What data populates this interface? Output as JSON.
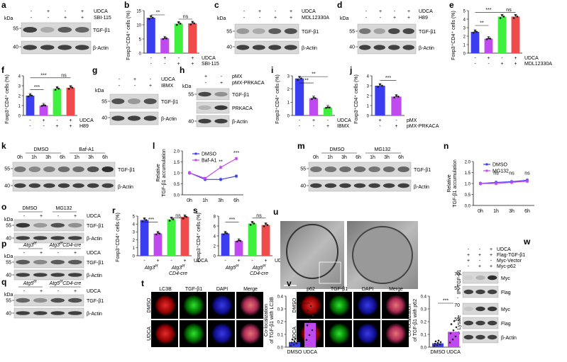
{
  "figure": {
    "panel_letters": [
      "a",
      "b",
      "c",
      "d",
      "e",
      "f",
      "g",
      "h",
      "i",
      "j",
      "k",
      "l",
      "m",
      "n",
      "o",
      "p",
      "q",
      "r",
      "s",
      "t",
      "u",
      "v",
      "w"
    ],
    "common": {
      "kda": "kDa",
      "tgf": "TGF-β1",
      "actin": "β-Actin",
      "udca": "UDCA",
      "foxp3_axis": "Foxp3⁺CD4⁺ cells (%)",
      "minus": "-",
      "plus": "+",
      "ns": "ns",
      "dmso": "DMSO",
      "dapi": "DAPI",
      "merge": "Merge"
    },
    "a": {
      "treat2": "SBI-115",
      "mw": [
        "55",
        "40"
      ]
    },
    "b": {
      "treat2": "SBI-115",
      "yticks": [
        "0",
        "5",
        "10",
        "15"
      ],
      "sig1": "**"
    },
    "c": {
      "treat2": "MDL12330A",
      "mw": [
        "55",
        "40"
      ]
    },
    "d": {
      "treat2": "H89",
      "mw": [
        "55",
        "40"
      ]
    },
    "e": {
      "treat2": "MDL12330A",
      "yticks": [
        "0",
        "1",
        "2",
        "3",
        "4",
        "5"
      ],
      "sig1": "***",
      "sig2": "**"
    },
    "f": {
      "treat2": "H89",
      "yticks": [
        "0",
        "1",
        "2",
        "3",
        "4"
      ],
      "sig1": "***",
      "sig2": "***"
    },
    "g": {
      "treat2": "IBMX",
      "mw": [
        "55",
        "40"
      ]
    },
    "h": {
      "row1": "pMX",
      "row2": "pMX-PRKACA",
      "prkaca": "PRKACA",
      "mw": [
        "55",
        "40"
      ]
    },
    "i": {
      "treat2": "IBMX",
      "yticks": [
        "0",
        "1",
        "2",
        "3"
      ],
      "sig1": "**",
      "sig2": "**"
    },
    "j": {
      "row1": "pMX",
      "row2": "pMX-PRKACA",
      "yticks": [
        "0",
        "1",
        "2",
        "3",
        "4"
      ],
      "sig1": "***"
    },
    "k": {
      "group2": "Baf-A1",
      "times": [
        "0h",
        "1h",
        "3h",
        "6h",
        "1h",
        "3h",
        "6h"
      ],
      "mw": [
        "55",
        "40"
      ]
    },
    "l": {
      "ylabel_line1": "Relative",
      "ylabel_line2": "TGF-β1 accumulation",
      "yticks": [
        "0.0",
        "0.5",
        "1.0",
        "1.5",
        "2.0"
      ],
      "sig_a": "**",
      "sig_b": "***",
      "legend": [
        "DMSO",
        "Baf-A1"
      ]
    },
    "m": {
      "group2": "MG132",
      "times": [
        "0h",
        "1h",
        "3h",
        "6h",
        "1h",
        "3h",
        "6h"
      ],
      "mw": [
        "55",
        "40"
      ]
    },
    "n": {
      "ylabel_line1": "Relative",
      "ylabel_line2": "TGF-β1 accumulation",
      "yticks": [
        "0.0",
        "0.5",
        "1.0",
        "1.5",
        "2.0"
      ],
      "legend": [
        "DMSO",
        "MG132"
      ]
    },
    "o": {
      "group2": "MG132",
      "mw": [
        "55",
        "40"
      ]
    },
    "p": {
      "g1": "Atg3",
      "g1sup": "f/f",
      "g2": "Atg3",
      "g2sup": "f/f",
      "g2suf": "CD4-cre",
      "mw": [
        "55",
        "40"
      ]
    },
    "q": {
      "g1": "Atg5",
      "g1sup": "f/f",
      "g2": "Atg5",
      "g2sup": "f/f",
      "g2suf": "CD4-cre",
      "mw": [
        "55",
        "40"
      ]
    },
    "r": {
      "yticks": [
        "0",
        "1",
        "2",
        "3",
        "4",
        "5"
      ],
      "sig1": "***",
      "g1": "Atg3",
      "g1sup": "f/f",
      "g2": "Atg3",
      "g2sup": "f/f",
      "g2suf": "CD4-cre"
    },
    "s": {
      "yticks": [
        "0",
        "2",
        "4",
        "6",
        "8"
      ],
      "sig1": "***",
      "g1": "Atg5",
      "g1sup": "f/f",
      "g2": "Atg5",
      "g2sup": "f/f",
      "g2suf": "CD4-cre"
    },
    "t": {
      "channels": [
        "LC3B",
        "TGF-β1",
        "DAPI",
        "Merge"
      ],
      "ylabel_line1": "Co-localization",
      "ylabel_line2": "of TGF-β1 with LC3B",
      "yticks": [
        "0.0",
        "0.1",
        "0.2",
        "0.3",
        "0.4"
      ],
      "sig": "***"
    },
    "v": {
      "channels": [
        "p62",
        "TGF-β1",
        "DAPI",
        "Merge"
      ],
      "ylabel_line1": "Co-localization",
      "ylabel_line2": "of TGF-β1 with p62",
      "yticks": [
        "0.0",
        "0.1",
        "0.2",
        "0.3",
        "0.4"
      ],
      "sig": "***"
    },
    "w": {
      "rows": [
        "UDCA",
        "Flag-TGF-β1",
        "Myc-Vector",
        "Myc-p62"
      ],
      "ip": "IP: TGF-β1",
      "lysate": "Lysate",
      "bands": [
        "Myc",
        "Flag",
        "Myc",
        "Flag",
        "β-Actin"
      ],
      "mw": [
        "70",
        "55",
        "70",
        "55",
        "40"
      ]
    }
  },
  "colors": {
    "blue": "#3a3df0",
    "purple": "#c04af0",
    "green": "#3ff03f",
    "red": "#f04a4a"
  },
  "chart_data": [
    {
      "type": "bar",
      "panel": "b",
      "categories": [
        "- / -",
        "UDCA",
        "SBI-115",
        "UDCA + SBI-115"
      ],
      "values": [
        12.5,
        5.2,
        10.4,
        10.5
      ],
      "ylim": [
        0,
        15
      ],
      "ylabel": "Foxp3⁺CD4⁺ cells (%)"
    },
    {
      "type": "bar",
      "panel": "e",
      "categories": [
        "- / -",
        "UDCA",
        "MDL12330A",
        "UDCA + MDL12330A"
      ],
      "values": [
        2.5,
        1.7,
        4.3,
        4.3
      ],
      "ylim": [
        0,
        5
      ],
      "ylabel": "Foxp3⁺CD4⁺ cells (%)"
    },
    {
      "type": "bar",
      "panel": "f",
      "categories": [
        "- / -",
        "UDCA",
        "H89",
        "UDCA + H89"
      ],
      "values": [
        2.0,
        1.0,
        2.7,
        2.8
      ],
      "ylim": [
        0,
        4
      ],
      "ylabel": "Foxp3⁺CD4⁺ cells (%)"
    },
    {
      "type": "bar",
      "panel": "i",
      "categories": [
        "- / -",
        "UDCA",
        "IBMX"
      ],
      "values": [
        2.8,
        1.3,
        0.6
      ],
      "ylim": [
        0,
        3
      ],
      "ylabel": "Foxp3⁺CD4⁺ cells (%)"
    },
    {
      "type": "bar",
      "panel": "j",
      "categories": [
        "pMX",
        "pMX-PRKACA"
      ],
      "values": [
        3.0,
        1.9
      ],
      "ylim": [
        0,
        4
      ],
      "ylabel": "Foxp3⁺CD4⁺ cells (%)"
    },
    {
      "type": "line",
      "panel": "l",
      "x": [
        "0h",
        "1h",
        "3h",
        "6h"
      ],
      "series": [
        {
          "name": "DMSO",
          "values": [
            1.0,
            0.7,
            0.7,
            0.85
          ]
        },
        {
          "name": "Baf-A1",
          "values": [
            1.0,
            0.75,
            1.25,
            1.65
          ]
        }
      ],
      "ylim": [
        0,
        2
      ]
    },
    {
      "type": "line",
      "panel": "n",
      "x": [
        "0h",
        "1h",
        "3h",
        "6h"
      ],
      "series": [
        {
          "name": "DMSO",
          "values": [
            1.0,
            1.05,
            1.08,
            1.15
          ]
        },
        {
          "name": "MG132",
          "values": [
            1.0,
            1.0,
            1.05,
            1.1
          ]
        }
      ],
      "ylim": [
        0,
        2
      ]
    },
    {
      "type": "bar",
      "panel": "r",
      "categories": [
        "Atg3 f/f -",
        "Atg3 f/f +",
        "Atg3 f/f CD4-cre -",
        "Atg3 f/f CD4-cre +"
      ],
      "values": [
        4.5,
        2.8,
        4.6,
        4.9
      ],
      "ylim": [
        0,
        5
      ],
      "ylabel": "Foxp3⁺CD4⁺ cells (%)"
    },
    {
      "type": "bar",
      "panel": "s",
      "categories": [
        "Atg5 f/f -",
        "Atg5 f/f +",
        "Atg5 f/f CD4-cre -",
        "Atg5 f/f CD4-cre +"
      ],
      "values": [
        4.5,
        3.0,
        6.5,
        6.2
      ],
      "ylim": [
        0,
        8
      ],
      "ylabel": "Foxp3⁺CD4⁺ cells (%)"
    },
    {
      "type": "bar",
      "panel": "t",
      "categories": [
        "DMSO",
        "UDCA"
      ],
      "values": [
        0.04,
        0.19
      ],
      "ylim": [
        0,
        0.4
      ]
    },
    {
      "type": "bar",
      "panel": "v",
      "categories": [
        "DMSO",
        "UDCA"
      ],
      "values": [
        0.03,
        0.12
      ],
      "ylim": [
        0,
        0.4
      ]
    }
  ]
}
